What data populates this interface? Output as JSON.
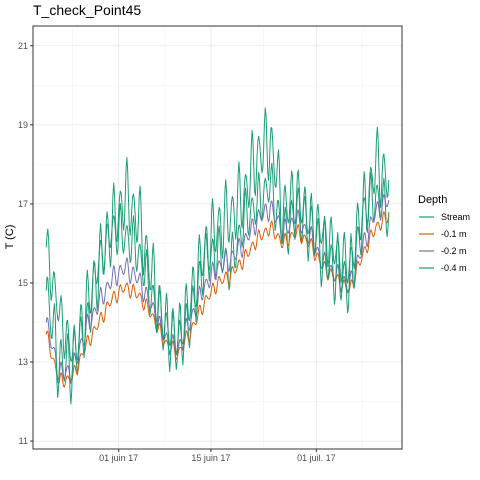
{
  "chart_data": {
    "type": "line",
    "title": "T_check_Point45",
    "xlabel": "",
    "ylabel": "T (C)",
    "x_range": [
      "2017-05-19",
      "2017-07-14"
    ],
    "ylim": [
      10.8,
      21.5
    ],
    "x_ticks": [
      {
        "date": "2017-06-01",
        "label": "01 juin 17"
      },
      {
        "date": "2017-06-15",
        "label": "15 juin 17"
      },
      {
        "date": "2017-07-01",
        "label": "01 juil. 17"
      }
    ],
    "y_ticks": [
      {
        "value": 11,
        "label": "11"
      },
      {
        "value": 13,
        "label": "13"
      },
      {
        "value": 15,
        "label": "15"
      },
      {
        "value": 17,
        "label": "17"
      },
      {
        "value": 19,
        "label": "19"
      },
      {
        "value": 21,
        "label": "21"
      }
    ],
    "grid": true,
    "legend": {
      "title": "Depth",
      "position": "right"
    },
    "series": [
      {
        "name": "Stream",
        "color": "#1b9e77",
        "x": [
          "2017-05-21",
          "2017-05-23",
          "2017-05-25",
          "2017-05-27",
          "2017-05-29",
          "2017-05-31",
          "2017-06-02",
          "2017-06-04",
          "2017-06-06",
          "2017-06-08",
          "2017-06-10",
          "2017-06-12",
          "2017-06-14",
          "2017-06-16",
          "2017-06-18",
          "2017-06-20",
          "2017-06-22",
          "2017-06-24",
          "2017-06-26",
          "2017-06-28",
          "2017-06-30",
          "2017-07-02",
          "2017-07-04",
          "2017-07-06",
          "2017-07-08",
          "2017-07-10",
          "2017-07-12"
        ],
        "values": [
          15.9,
          14.2,
          13.2,
          13.8,
          15.6,
          16.4,
          16.2,
          15.8,
          14.7,
          13.9,
          13.5,
          14.2,
          15.6,
          15.8,
          15.4,
          16.6,
          17.0,
          17.5,
          16.2,
          16.9,
          16.5,
          16.3,
          15.8,
          15.4,
          16.8,
          17.2,
          16.8
        ]
      },
      {
        "name": "-0.1 m",
        "color": "#d95f02",
        "x": [
          "2017-05-21",
          "2017-05-23",
          "2017-05-25",
          "2017-05-27",
          "2017-05-29",
          "2017-05-31",
          "2017-06-02",
          "2017-06-04",
          "2017-06-06",
          "2017-06-08",
          "2017-06-10",
          "2017-06-12",
          "2017-06-14",
          "2017-06-16",
          "2017-06-18",
          "2017-06-20",
          "2017-06-22",
          "2017-06-24",
          "2017-06-26",
          "2017-06-28",
          "2017-06-30",
          "2017-07-02",
          "2017-07-04",
          "2017-07-06",
          "2017-07-08",
          "2017-07-10",
          "2017-07-12"
        ],
        "values": [
          13.7,
          12.5,
          12.6,
          13.4,
          14.0,
          14.6,
          14.9,
          14.7,
          14.2,
          13.5,
          13.2,
          13.8,
          14.5,
          15.0,
          15.2,
          15.6,
          16.1,
          16.4,
          16.0,
          16.3,
          16.0,
          15.4,
          15.1,
          14.8,
          15.7,
          16.4,
          16.7
        ]
      },
      {
        "name": "-0.2 m",
        "color": "#7570b3",
        "x": [
          "2017-05-21",
          "2017-05-23",
          "2017-05-25",
          "2017-05-27",
          "2017-05-29",
          "2017-05-31",
          "2017-06-02",
          "2017-06-04",
          "2017-06-06",
          "2017-06-08",
          "2017-06-10",
          "2017-06-12",
          "2017-06-14",
          "2017-06-16",
          "2017-06-18",
          "2017-06-20",
          "2017-06-22",
          "2017-06-24",
          "2017-06-26",
          "2017-06-28",
          "2017-06-30",
          "2017-07-02",
          "2017-07-04",
          "2017-07-06",
          "2017-07-08",
          "2017-07-10",
          "2017-07-12"
        ],
        "values": [
          14.0,
          12.7,
          12.8,
          13.8,
          14.5,
          15.1,
          15.4,
          15.1,
          14.4,
          13.6,
          13.3,
          14.1,
          14.9,
          15.4,
          15.6,
          16.0,
          16.6,
          16.9,
          16.3,
          16.6,
          16.2,
          15.5,
          15.2,
          14.9,
          15.9,
          16.8,
          17.1
        ]
      },
      {
        "name": "-0.4 m",
        "color": "#1b9e77",
        "x": [
          "2017-05-21",
          "2017-05-23",
          "2017-05-25",
          "2017-05-27",
          "2017-05-29",
          "2017-05-31",
          "2017-06-02",
          "2017-06-04",
          "2017-06-06",
          "2017-06-08",
          "2017-06-10",
          "2017-06-12",
          "2017-06-14",
          "2017-06-16",
          "2017-06-18",
          "2017-06-20",
          "2017-06-22",
          "2017-06-24",
          "2017-06-26",
          "2017-06-28",
          "2017-06-30",
          "2017-07-02",
          "2017-07-04",
          "2017-07-06",
          "2017-07-08",
          "2017-07-10",
          "2017-07-12"
        ],
        "values": [
          14.8,
          12.9,
          13.0,
          14.3,
          15.4,
          16.4,
          17.2,
          16.6,
          15.2,
          13.9,
          13.6,
          14.6,
          15.8,
          16.4,
          16.7,
          17.2,
          18.2,
          18.6,
          16.8,
          17.2,
          16.5,
          15.8,
          15.3,
          15.0,
          16.6,
          18.0,
          17.6
        ]
      }
    ]
  }
}
